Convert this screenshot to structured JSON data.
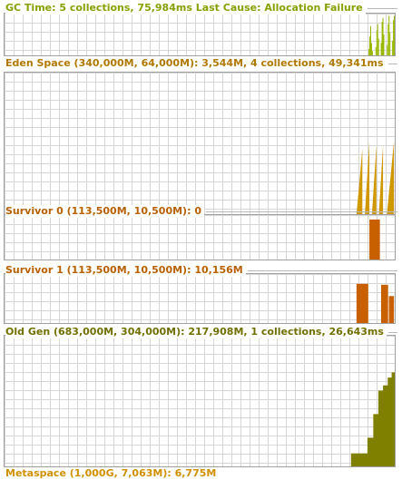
{
  "panels": [
    {
      "id": "gc",
      "title": "GC Time: 5 collections, 75,984ms Last Cause: Allocation Failure",
      "title_color": "#88a000",
      "fill_color": "#98b800",
      "values": [
        0,
        0,
        0,
        0,
        0,
        0,
        0,
        0,
        0,
        0,
        0,
        0,
        0,
        0,
        0,
        0,
        0,
        0,
        0,
        0,
        0,
        0,
        0,
        0,
        0,
        0,
        0,
        0,
        0,
        0,
        0,
        0,
        0,
        0,
        0,
        0,
        0,
        0,
        0,
        0,
        0,
        0,
        0,
        0,
        0,
        0,
        0,
        0,
        0,
        0,
        0,
        0,
        0,
        0,
        0,
        0,
        0,
        0,
        0,
        0,
        0,
        0,
        0,
        0,
        0,
        0,
        0,
        0,
        0,
        0,
        0,
        0,
        0,
        0,
        0,
        0,
        0,
        0,
        0,
        0,
        0,
        0,
        0,
        0,
        0,
        0,
        0,
        0,
        0,
        0,
        0,
        0,
        0,
        0,
        0,
        0,
        0,
        0,
        0,
        0,
        0,
        0,
        0,
        0,
        0,
        0,
        0,
        0,
        0,
        0,
        0,
        0,
        0,
        0,
        0,
        0,
        0,
        0,
        0,
        0,
        0,
        0,
        0,
        0,
        0,
        0,
        0,
        0,
        0,
        0,
        0,
        0,
        0,
        0,
        0,
        0,
        0,
        0,
        0,
        0,
        0,
        0,
        0,
        0,
        0,
        0,
        0,
        0,
        0,
        0,
        0,
        0,
        0,
        0,
        0,
        0,
        0,
        0,
        0,
        0,
        0,
        0,
        0,
        0,
        0,
        0,
        0,
        0,
        0,
        0,
        0,
        0,
        0,
        0,
        0,
        0,
        0,
        0,
        0,
        0,
        0,
        0,
        0,
        0,
        0,
        0,
        0,
        0,
        0,
        0,
        0,
        0,
        0,
        0,
        0,
        0,
        0,
        0,
        0,
        0,
        0,
        0,
        0,
        0,
        0,
        0,
        0,
        0,
        0,
        0,
        0,
        0,
        0,
        0,
        0,
        0,
        0,
        0,
        0,
        0,
        0,
        0,
        0,
        0,
        0,
        0,
        0,
        0,
        0,
        0,
        0,
        0,
        0,
        0,
        0,
        0,
        0,
        0,
        0,
        0,
        0,
        0,
        0,
        0,
        0,
        0,
        0,
        0,
        0,
        0,
        0,
        0,
        0,
        0,
        0,
        0,
        0,
        0,
        0,
        0,
        0,
        0,
        0,
        0,
        0,
        0,
        0,
        0,
        0,
        0,
        0,
        0,
        0,
        0,
        0,
        0,
        0,
        0,
        0,
        0,
        0,
        0,
        0,
        0,
        0,
        0,
        0,
        0,
        0,
        0,
        0,
        0,
        0,
        0,
        0,
        0,
        0,
        0,
        0,
        0,
        0,
        0,
        0,
        0,
        0,
        0,
        0,
        0,
        0,
        0,
        0,
        0,
        0,
        0,
        0,
        0,
        0,
        0,
        0,
        0,
        0,
        0,
        0,
        0,
        0,
        0,
        0,
        0,
        0,
        0,
        0,
        0,
        0,
        0,
        0,
        0,
        0,
        0,
        0,
        0,
        0,
        0,
        0,
        0,
        0,
        0,
        0,
        0,
        0,
        0,
        0,
        0,
        0,
        0,
        0,
        0,
        0,
        0,
        0,
        0,
        0,
        0,
        0,
        0,
        0,
        0,
        0,
        0,
        0,
        0,
        0,
        0,
        0,
        0,
        0,
        0,
        0,
        0,
        0,
        0,
        0,
        0,
        0,
        0,
        0,
        0,
        0,
        0,
        0,
        0,
        0,
        0,
        0,
        0,
        0,
        0,
        0,
        0,
        0,
        0,
        0,
        0,
        0,
        0,
        0,
        0,
        0,
        0,
        0,
        0,
        0,
        0,
        0,
        0,
        0,
        0,
        0.15,
        0.45,
        0.7,
        0.3,
        0.1,
        0,
        0,
        0,
        0.2,
        0.6,
        0.75,
        0.4,
        0,
        0,
        0.3,
        0.8,
        0.9,
        0.5,
        0,
        0,
        0,
        0.25,
        0.75,
        0.95,
        0.55,
        0,
        0,
        0.35,
        0.85,
        0.95
      ],
      "shape": "bars"
    },
    {
      "id": "eden",
      "title": "Eden Space (340,000M, 64,000M): 3,544M, 4 collections, 49,341ms",
      "title_color": "#b07800",
      "fill_color": "#d09800",
      "shape": "saw",
      "saw": [
        {
          "start": 0.893,
          "end": 0.917,
          "peak": 0.58
        },
        {
          "start": 0.917,
          "end": 0.935,
          "peak": 0.62
        },
        {
          "start": 0.935,
          "end": 0.953,
          "peak": 0.6
        },
        {
          "start": 0.953,
          "end": 0.97,
          "peak": 0.6
        },
        {
          "start": 0.97,
          "end": 0.998,
          "peak": 0.62
        }
      ]
    },
    {
      "id": "s0",
      "title": "Survivor 0 (113,500M, 10,500M): 0",
      "title_color": "#b86000",
      "fill_color": "#c86000",
      "shape": "blocks",
      "blocks": [
        {
          "start": 0.935,
          "end": 0.962,
          "level": 0.9
        }
      ]
    },
    {
      "id": "s1",
      "title": "Survivor 1 (113,500M, 10,500M): 10,156M",
      "title_color": "#b86000",
      "fill_color": "#c86000",
      "shape": "blocks",
      "blocks": [
        {
          "start": 0.902,
          "end": 0.932,
          "level": 0.8
        },
        {
          "start": 0.965,
          "end": 0.983,
          "level": 0.78
        },
        {
          "start": 0.985,
          "end": 0.998,
          "level": 0.55
        }
      ]
    },
    {
      "id": "old",
      "title": "Old Gen (683,000M, 304,000M): 217,908M, 1 collections, 26,643ms",
      "title_color": "#707000",
      "fill_color": "#808000",
      "shape": "steps",
      "steps": [
        {
          "start": 0.888,
          "level": 0.1
        },
        {
          "start": 0.93,
          "level": 0.22
        },
        {
          "start": 0.945,
          "level": 0.4
        },
        {
          "start": 0.958,
          "level": 0.58
        },
        {
          "start": 0.97,
          "level": 0.62
        },
        {
          "start": 0.982,
          "level": 0.68
        },
        {
          "start": 0.992,
          "level": 0.72
        }
      ]
    }
  ],
  "metaspace_title": "Metaspace (1,000G, 7,063M): 6,775M",
  "metaspace_color": "#d09000"
}
